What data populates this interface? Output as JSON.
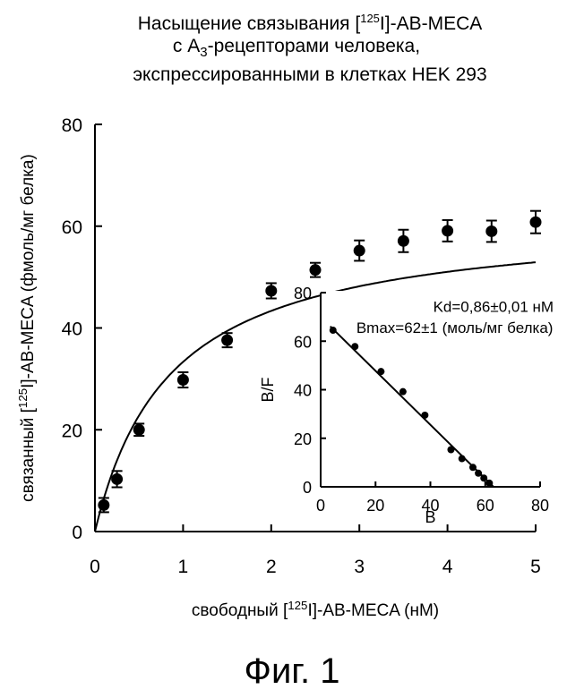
{
  "title_lines": [
    "Насыщение связывания [125I]-AB-MECA",
    "с А3-рецепторами человека,",
    "экспрессированными в клетках HEK 293"
  ],
  "figure_caption": "Фиг. 1",
  "chart_data": [
    {
      "type": "scatter",
      "role": "main",
      "xlabel": "свободный [125I]-AB-MECA (нМ)",
      "ylabel": "связанный [125I]-AB-MECA (фмоль/мг белка)",
      "xlim": [
        0,
        5
      ],
      "ylim": [
        0,
        80
      ],
      "xticks": [
        0,
        1,
        2,
        3,
        4,
        5
      ],
      "yticks": [
        0,
        20,
        40,
        60,
        80
      ],
      "series": [
        {
          "points": [
            {
              "x": 0.1,
              "y": 5.2,
              "err": 1.4
            },
            {
              "x": 0.25,
              "y": 10.3,
              "err": 1.6
            },
            {
              "x": 0.5,
              "y": 20.0,
              "err": 1.2
            },
            {
              "x": 1.0,
              "y": 29.8,
              "err": 1.5
            },
            {
              "x": 1.5,
              "y": 37.6,
              "err": 1.4
            },
            {
              "x": 2.0,
              "y": 47.3,
              "err": 1.5
            },
            {
              "x": 2.5,
              "y": 51.4,
              "err": 1.4
            },
            {
              "x": 3.0,
              "y": 55.2,
              "err": 2.0
            },
            {
              "x": 3.5,
              "y": 57.1,
              "err": 2.2
            },
            {
              "x": 4.0,
              "y": 59.1,
              "err": 2.1
            },
            {
              "x": 4.5,
              "y": 59.0,
              "err": 2.1
            },
            {
              "x": 5.0,
              "y": 60.8,
              "err": 2.2
            }
          ]
        }
      ],
      "fit_curve": {
        "model": "one-site saturation",
        "Bmax": 62,
        "Kd": 0.86,
        "grid": false
      }
    },
    {
      "type": "scatter",
      "role": "inset",
      "xlabel": "B",
      "ylabel": "B/F",
      "xlim": [
        0,
        80
      ],
      "ylim": [
        0,
        80
      ],
      "xticks": [
        0,
        20,
        40,
        60,
        80
      ],
      "yticks": [
        0,
        20,
        40,
        60,
        80
      ],
      "annotations": [
        "Kd=0,86±0,01 нМ",
        "Bmax=62±1 (моль/мг белка)"
      ],
      "series": [
        {
          "points": [
            {
              "x": 4.5,
              "y": 64.5
            },
            {
              "x": 12.5,
              "y": 57.8
            },
            {
              "x": 22.0,
              "y": 47.5
            },
            {
              "x": 30.0,
              "y": 39.2
            },
            {
              "x": 38.0,
              "y": 29.5
            },
            {
              "x": 47.5,
              "y": 15.3
            },
            {
              "x": 51.5,
              "y": 11.6
            },
            {
              "x": 55.5,
              "y": 8.0
            },
            {
              "x": 57.5,
              "y": 5.6
            },
            {
              "x": 59.5,
              "y": 3.6
            },
            {
              "x": 61.5,
              "y": 1.5
            }
          ]
        }
      ],
      "fit_line": {
        "x": [
          0,
          63
        ],
        "y": [
          70,
          0
        ]
      }
    }
  ]
}
